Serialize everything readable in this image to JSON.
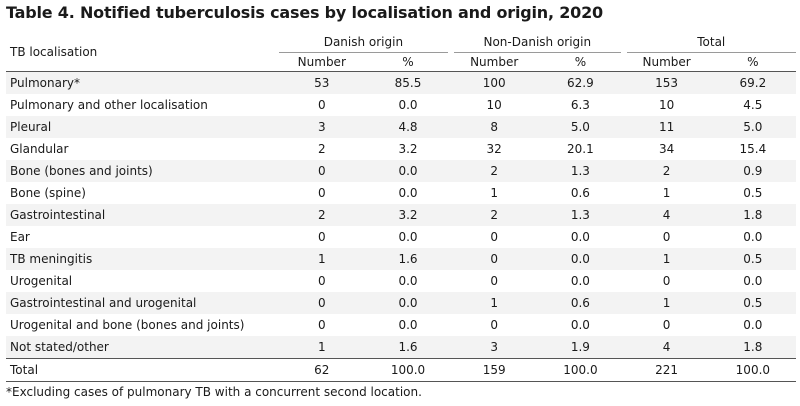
{
  "title": "Table 4. Notified tuberculosis cases by localisation and origin, 2020",
  "row_header": "TB localisation",
  "groups": [
    "Danish origin",
    "Non-Danish origin",
    "Total"
  ],
  "subheaders": [
    "Number",
    "%",
    "Number",
    "%",
    "Number",
    "%"
  ],
  "rows": [
    {
      "label": "Pulmonary*",
      "cells": [
        "53",
        "85.5",
        "100",
        "62.9",
        "153",
        "69.2"
      ]
    },
    {
      "label": "Pulmonary and other localisation",
      "cells": [
        "0",
        "0.0",
        "10",
        "6.3",
        "10",
        "4.5"
      ]
    },
    {
      "label": "Pleural",
      "cells": [
        "3",
        "4.8",
        "8",
        "5.0",
        "11",
        "5.0"
      ]
    },
    {
      "label": "Glandular",
      "cells": [
        "2",
        "3.2",
        "32",
        "20.1",
        "34",
        "15.4"
      ]
    },
    {
      "label": "Bone (bones and joints)",
      "cells": [
        "0",
        "0.0",
        "2",
        "1.3",
        "2",
        "0.9"
      ]
    },
    {
      "label": "Bone (spine)",
      "cells": [
        "0",
        "0.0",
        "1",
        "0.6",
        "1",
        "0.5"
      ]
    },
    {
      "label": "Gastrointestinal",
      "cells": [
        "2",
        "3.2",
        "2",
        "1.3",
        "4",
        "1.8"
      ]
    },
    {
      "label": "Ear",
      "cells": [
        "0",
        "0.0",
        "0",
        "0.0",
        "0",
        "0.0"
      ]
    },
    {
      "label": "TB meningitis",
      "cells": [
        "1",
        "1.6",
        "0",
        "0.0",
        "1",
        "0.5"
      ]
    },
    {
      "label": "Urogenital",
      "cells": [
        "0",
        "0.0",
        "0",
        "0.0",
        "0",
        "0.0"
      ]
    },
    {
      "label": "Gastrointestinal and urogenital",
      "cells": [
        "0",
        "0.0",
        "1",
        "0.6",
        "1",
        "0.5"
      ]
    },
    {
      "label": "Urogenital and bone (bones and joints)",
      "cells": [
        "0",
        "0.0",
        "0",
        "0.0",
        "0",
        "0.0"
      ]
    },
    {
      "label": "Not stated/other",
      "cells": [
        "1",
        "1.6",
        "3",
        "1.9",
        "4",
        "1.8"
      ]
    }
  ],
  "total_row": {
    "label": "Total",
    "cells": [
      "62",
      "100.0",
      "159",
      "100.0",
      "221",
      "100.0"
    ]
  },
  "footnote": "*Excluding cases of pulmonary TB with a concurrent second location.",
  "colors": {
    "row_shade": "#f3f3f3",
    "rule": "#555555"
  }
}
